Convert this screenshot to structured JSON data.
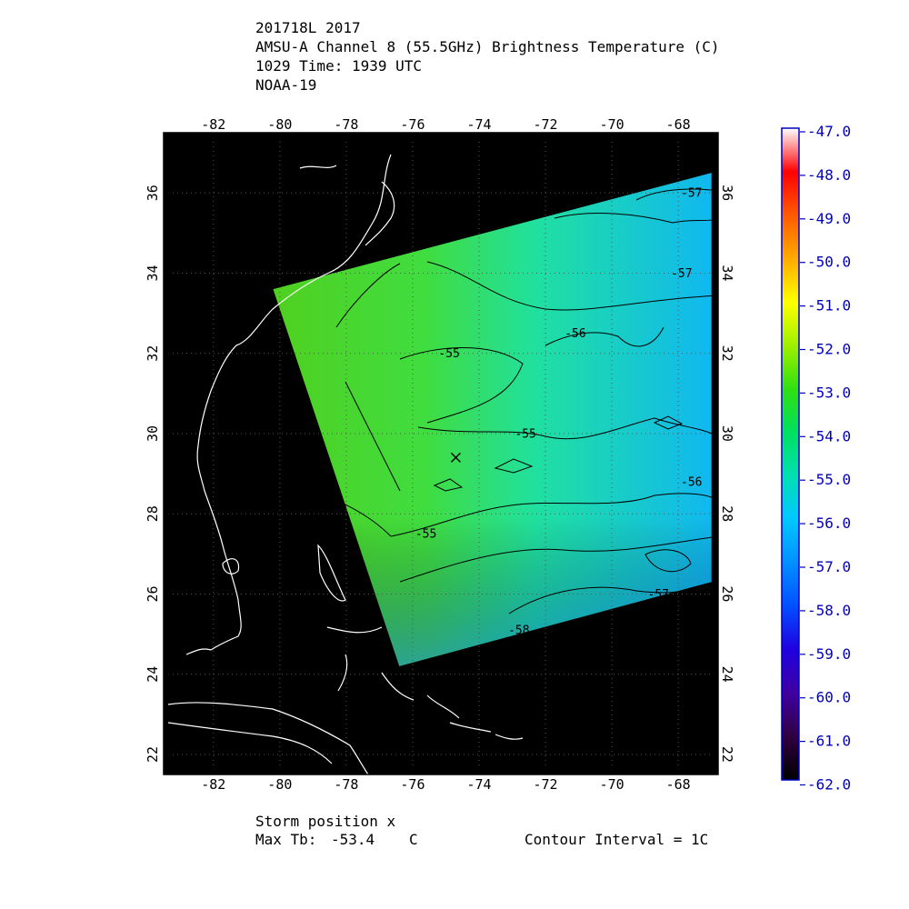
{
  "header": {
    "line1": "201718L 2017",
    "line2": "AMSU-A Channel 8 (55.5GHz) Brightness Temperature (C)",
    "line3": "1029 Time: 1939 UTC",
    "line4": "NOAA-19"
  },
  "footer": {
    "storm_position": "Storm position x",
    "max_tb_label": "Max Tb:",
    "max_tb_value": "-53.4",
    "max_tb_unit": "C",
    "contour_interval": "Contour Interval = 1C"
  },
  "map": {
    "lon_range": [
      -83.5,
      -66.8
    ],
    "lat_range": [
      21.5,
      37.5
    ],
    "lon_ticks": [
      "-82",
      "-80",
      "-78",
      "-76",
      "-74",
      "-72",
      "-70",
      "-68"
    ],
    "lat_ticks": [
      "22",
      "24",
      "26",
      "28",
      "30",
      "32",
      "34",
      "36"
    ],
    "background_color": "#000000",
    "coastline_color": "#ffffff",
    "swath": {
      "corners_lonlat": [
        [
          -80.2,
          33.6
        ],
        [
          -67.0,
          36.5
        ],
        [
          -67.0,
          26.3
        ],
        [
          -76.4,
          24.2
        ]
      ]
    },
    "contour_labels": [
      {
        "text": "-57",
        "lon": -67.6,
        "lat": 35.9
      },
      {
        "text": "-57",
        "lon": -67.9,
        "lat": 33.9
      },
      {
        "text": "-56",
        "lon": -71.1,
        "lat": 32.4
      },
      {
        "text": "-55",
        "lon": -74.9,
        "lat": 31.9
      },
      {
        "text": "-55",
        "lon": -72.6,
        "lat": 29.9
      },
      {
        "text": "-56",
        "lon": -67.6,
        "lat": 28.7
      },
      {
        "text": "-55",
        "lon": -75.6,
        "lat": 27.4
      },
      {
        "text": "-57",
        "lon": -68.6,
        "lat": 25.9
      },
      {
        "text": "-58",
        "lon": -72.8,
        "lat": 25.0
      }
    ],
    "storm_marker": {
      "symbol": "x",
      "lon": -74.7,
      "lat": 29.4
    }
  },
  "colorbar": {
    "labels": [
      "-47.0",
      "-48.0",
      "-49.0",
      "-50.0",
      "-51.0",
      "-52.0",
      "-53.0",
      "-54.0",
      "-55.0",
      "-56.0",
      "-57.0",
      "-58.0",
      "-59.0",
      "-60.0",
      "-61.0",
      "-62.0"
    ],
    "stops": [
      "#ffffff",
      "#ff0000",
      "#ff5a00",
      "#ffaa00",
      "#ffff00",
      "#a0f000",
      "#30e010",
      "#00e060",
      "#00e0b0",
      "#00c8ff",
      "#0090ff",
      "#0050ff",
      "#2000e0",
      "#4000a0",
      "#300040",
      "#000000"
    ],
    "label_color": "#0000c0"
  }
}
